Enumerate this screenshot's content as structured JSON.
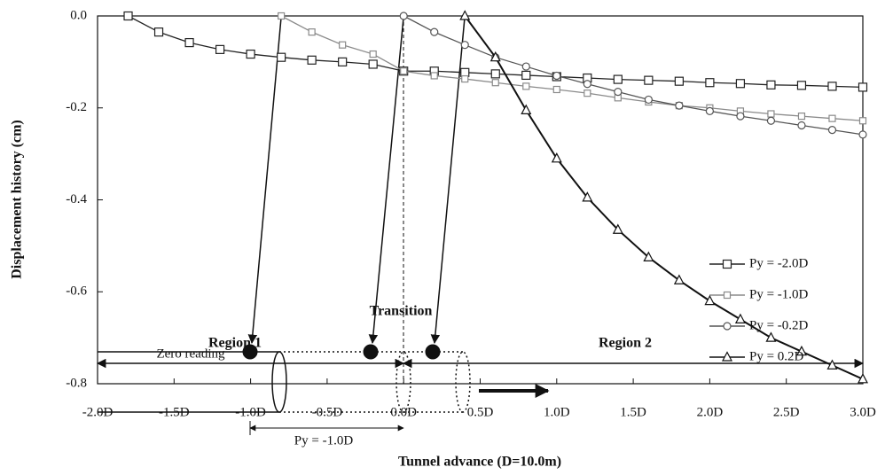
{
  "chart_data": {
    "type": "line",
    "xlabel": "Tunnel advance (D=10.0m)",
    "ylabel": "Displacement history (cm)",
    "xlim": [
      -2,
      3
    ],
    "ylim": [
      -0.8,
      0
    ],
    "xticks": [
      {
        "value": -2,
        "label": "-2.0D"
      },
      {
        "value": -1.5,
        "label": "-1.5D"
      },
      {
        "value": -1,
        "label": "-1.0D"
      },
      {
        "value": -0.5,
        "label": "-0.5D"
      },
      {
        "value": 0,
        "label": "0.0D"
      },
      {
        "value": 0.5,
        "label": "0.5D"
      },
      {
        "value": 1,
        "label": "1.0D"
      },
      {
        "value": 1.5,
        "label": "1.5D"
      },
      {
        "value": 2,
        "label": "2.0D"
      },
      {
        "value": 2.5,
        "label": "2.5D"
      },
      {
        "value": 3,
        "label": "3.0D"
      }
    ],
    "yticks": [
      {
        "value": 0,
        "label": "0.0"
      },
      -0.2,
      -0.4,
      -0.6,
      -0.8
    ],
    "legend": "right",
    "series": [
      {
        "name": "Py = -2.0D",
        "color": "#222222",
        "marker": "square",
        "x": [
          -1.8,
          -1.6,
          -1.4,
          -1.2,
          -1.0,
          -0.8,
          -0.6,
          -0.4,
          -0.2,
          0,
          0.2,
          0.4,
          0.6,
          0.8,
          1.0,
          1.2,
          1.4,
          1.6,
          1.8,
          2.0,
          2.2,
          2.4,
          2.6,
          2.8,
          3.0
        ],
        "values": [
          0,
          -0.035,
          -0.058,
          -0.073,
          -0.083,
          -0.09,
          -0.096,
          -0.1,
          -0.105,
          -0.12,
          -0.12,
          -0.123,
          -0.126,
          -0.129,
          -0.132,
          -0.135,
          -0.138,
          -0.14,
          -0.142,
          -0.145,
          -0.147,
          -0.15,
          -0.151,
          -0.153,
          -0.155
        ]
      },
      {
        "name": "Py = -1.0D",
        "color": "#8a8a8a",
        "marker": "small-square",
        "x": [
          -0.8,
          -0.6,
          -0.4,
          -0.2,
          0,
          0.2,
          0.4,
          0.6,
          0.8,
          1.0,
          1.2,
          1.4,
          1.6,
          1.8,
          2.0,
          2.2,
          2.4,
          2.6,
          2.8,
          3.0
        ],
        "values": [
          0,
          -0.035,
          -0.063,
          -0.083,
          -0.12,
          -0.13,
          -0.137,
          -0.145,
          -0.153,
          -0.16,
          -0.168,
          -0.178,
          -0.187,
          -0.195,
          -0.2,
          -0.207,
          -0.213,
          -0.218,
          -0.223,
          -0.228
        ]
      },
      {
        "name": "Py = -0.2D",
        "color": "#555555",
        "marker": "circle",
        "x": [
          0,
          0.2,
          0.4,
          0.6,
          0.8,
          1.0,
          1.2,
          1.4,
          1.6,
          1.8,
          2.0,
          2.2,
          2.4,
          2.6,
          2.8,
          3.0
        ],
        "values": [
          0,
          -0.035,
          -0.063,
          -0.09,
          -0.11,
          -0.13,
          -0.148,
          -0.165,
          -0.182,
          -0.195,
          -0.207,
          -0.218,
          -0.228,
          -0.238,
          -0.248,
          -0.258
        ]
      },
      {
        "name": "Py = 0.2D",
        "color": "#111111",
        "marker": "triangle",
        "x": [
          0.4,
          0.6,
          0.8,
          1.0,
          1.2,
          1.4,
          1.6,
          1.8,
          2.0,
          2.2,
          2.4,
          2.6,
          2.8,
          3.0
        ],
        "values": [
          0,
          -0.09,
          -0.205,
          -0.31,
          -0.395,
          -0.465,
          -0.525,
          -0.575,
          -0.62,
          -0.66,
          -0.7,
          -0.73,
          -0.76,
          -0.79
        ]
      }
    ],
    "annotations": {
      "zero_reading": "Zero reading",
      "offset": "Py = -1.0D",
      "transition": "Transition",
      "region1": "Region 1",
      "region2": "Region 2"
    }
  }
}
